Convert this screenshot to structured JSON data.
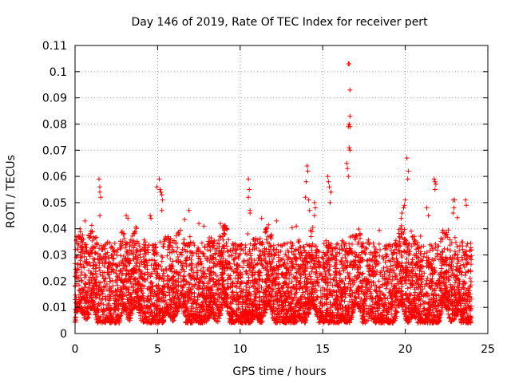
{
  "chart_data": {
    "type": "scatter",
    "title": "Day 146 of 2019, Rate Of TEC Index for receiver pert",
    "xlabel": "GPS time / hours",
    "ylabel": "ROTI / TECUs",
    "xlim": [
      0,
      25
    ],
    "ylim": [
      0,
      0.11
    ],
    "xticks": [
      "0",
      "5",
      "10",
      "15",
      "20",
      "25"
    ],
    "xtick_values": [
      0,
      5,
      10,
      15,
      20,
      25
    ],
    "yticks": [
      "0",
      "0.01",
      "0.02",
      "0.03",
      "0.04",
      "0.05",
      "0.06",
      "0.07",
      "0.08",
      "0.09",
      "0.1",
      "0.11"
    ],
    "ytick_values": [
      0,
      0.01,
      0.02,
      0.03,
      0.04,
      0.05,
      0.06,
      0.07,
      0.08,
      0.09,
      0.1,
      0.11
    ],
    "grid": true,
    "marker": "+",
    "series": [
      {
        "name": "ROTI",
        "color": "#ff0000",
        "x_range": [
          0,
          24
        ],
        "description_values": {
          "baseline_min": 0.004,
          "baseline_max": 0.035
        },
        "peaks": [
          {
            "x": 1.45,
            "y": 0.059
          },
          {
            "x": 1.5,
            "y": 0.056
          },
          {
            "x": 1.5,
            "y": 0.054
          },
          {
            "x": 1.55,
            "y": 0.052
          },
          {
            "x": 1.5,
            "y": 0.045
          },
          {
            "x": 3.1,
            "y": 0.045
          },
          {
            "x": 3.2,
            "y": 0.044
          },
          {
            "x": 4.55,
            "y": 0.045
          },
          {
            "x": 4.6,
            "y": 0.044
          },
          {
            "x": 4.95,
            "y": 0.056
          },
          {
            "x": 5.1,
            "y": 0.059
          },
          {
            "x": 5.15,
            "y": 0.055
          },
          {
            "x": 5.2,
            "y": 0.054
          },
          {
            "x": 5.25,
            "y": 0.053
          },
          {
            "x": 5.3,
            "y": 0.051
          },
          {
            "x": 5.25,
            "y": 0.047
          },
          {
            "x": 6.9,
            "y": 0.047
          },
          {
            "x": 10.5,
            "y": 0.059
          },
          {
            "x": 10.55,
            "y": 0.055
          },
          {
            "x": 10.5,
            "y": 0.052
          },
          {
            "x": 10.6,
            "y": 0.047
          },
          {
            "x": 10.6,
            "y": 0.046
          },
          {
            "x": 11.3,
            "y": 0.044
          },
          {
            "x": 14.05,
            "y": 0.064
          },
          {
            "x": 14.1,
            "y": 0.062
          },
          {
            "x": 14.0,
            "y": 0.058
          },
          {
            "x": 13.95,
            "y": 0.052
          },
          {
            "x": 14.15,
            "y": 0.051
          },
          {
            "x": 14.2,
            "y": 0.047
          },
          {
            "x": 14.5,
            "y": 0.05
          },
          {
            "x": 14.55,
            "y": 0.048
          },
          {
            "x": 14.5,
            "y": 0.045
          },
          {
            "x": 15.3,
            "y": 0.06
          },
          {
            "x": 15.35,
            "y": 0.058
          },
          {
            "x": 15.4,
            "y": 0.056
          },
          {
            "x": 15.5,
            "y": 0.054
          },
          {
            "x": 15.45,
            "y": 0.05
          },
          {
            "x": 16.55,
            "y": 0.103
          },
          {
            "x": 16.6,
            "y": 0.103
          },
          {
            "x": 16.65,
            "y": 0.093
          },
          {
            "x": 16.65,
            "y": 0.083
          },
          {
            "x": 16.6,
            "y": 0.08
          },
          {
            "x": 16.55,
            "y": 0.079
          },
          {
            "x": 16.65,
            "y": 0.079
          },
          {
            "x": 16.6,
            "y": 0.071
          },
          {
            "x": 16.65,
            "y": 0.07
          },
          {
            "x": 16.45,
            "y": 0.065
          },
          {
            "x": 16.5,
            "y": 0.063
          },
          {
            "x": 16.55,
            "y": 0.06
          },
          {
            "x": 20.1,
            "y": 0.067
          },
          {
            "x": 20.2,
            "y": 0.062
          },
          {
            "x": 20.15,
            "y": 0.059
          },
          {
            "x": 20.0,
            "y": 0.051
          },
          {
            "x": 19.95,
            "y": 0.049
          },
          {
            "x": 19.9,
            "y": 0.048
          },
          {
            "x": 19.8,
            "y": 0.046
          },
          {
            "x": 19.75,
            "y": 0.044
          },
          {
            "x": 21.75,
            "y": 0.059
          },
          {
            "x": 21.8,
            "y": 0.058
          },
          {
            "x": 21.85,
            "y": 0.057
          },
          {
            "x": 21.8,
            "y": 0.055
          },
          {
            "x": 21.3,
            "y": 0.048
          },
          {
            "x": 21.4,
            "y": 0.045
          },
          {
            "x": 22.9,
            "y": 0.051
          },
          {
            "x": 23.0,
            "y": 0.051
          },
          {
            "x": 22.95,
            "y": 0.048
          },
          {
            "x": 22.9,
            "y": 0.046
          },
          {
            "x": 23.65,
            "y": 0.051
          },
          {
            "x": 23.7,
            "y": 0.049
          },
          {
            "x": 8.8,
            "y": 0.042
          },
          {
            "x": 9.0,
            "y": 0.041
          },
          {
            "x": 9.2,
            "y": 0.04
          },
          {
            "x": 7.5,
            "y": 0.042
          },
          {
            "x": 7.8,
            "y": 0.041
          },
          {
            "x": 0.6,
            "y": 0.043
          },
          {
            "x": 0.3,
            "y": 0.04
          },
          {
            "x": 12.2,
            "y": 0.043
          },
          {
            "x": 13.4,
            "y": 0.041
          }
        ]
      }
    ]
  }
}
